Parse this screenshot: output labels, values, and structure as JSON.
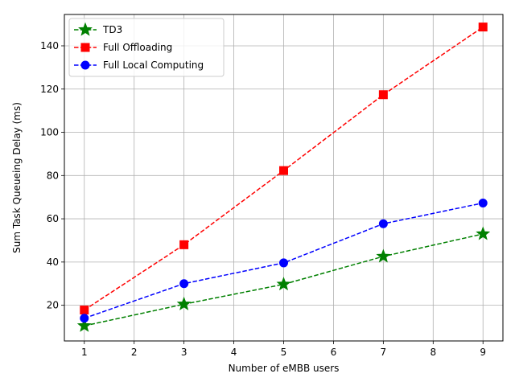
{
  "chart_data": {
    "type": "line",
    "title": "",
    "xlabel": "Number of eMBB users",
    "ylabel": "Sum Task Queueing Delay (ms)",
    "x": [
      1,
      3,
      5,
      7,
      9
    ],
    "xlim": [
      0.6,
      9.4
    ],
    "ylim": [
      3.5,
      154.5
    ],
    "xticks": [
      1,
      2,
      3,
      4,
      5,
      6,
      7,
      8,
      9
    ],
    "yticks": [
      20,
      40,
      60,
      80,
      100,
      120,
      140
    ],
    "grid": true,
    "legend_position": "upper left",
    "series": [
      {
        "name": "TD3",
        "color": "#008000",
        "marker": "star",
        "linestyle": "dashed",
        "values": [
          10.5,
          20.5,
          29.7,
          42.6,
          53.0
        ]
      },
      {
        "name": "Full Offloading",
        "color": "#ff0000",
        "marker": "square",
        "linestyle": "dashed",
        "values": [
          17.8,
          48.0,
          82.3,
          117.4,
          148.7
        ]
      },
      {
        "name": "Full Local Computing",
        "color": "#0000ff",
        "marker": "circle",
        "linestyle": "dashed",
        "values": [
          14.0,
          30.0,
          39.6,
          57.7,
          67.3
        ]
      }
    ]
  }
}
